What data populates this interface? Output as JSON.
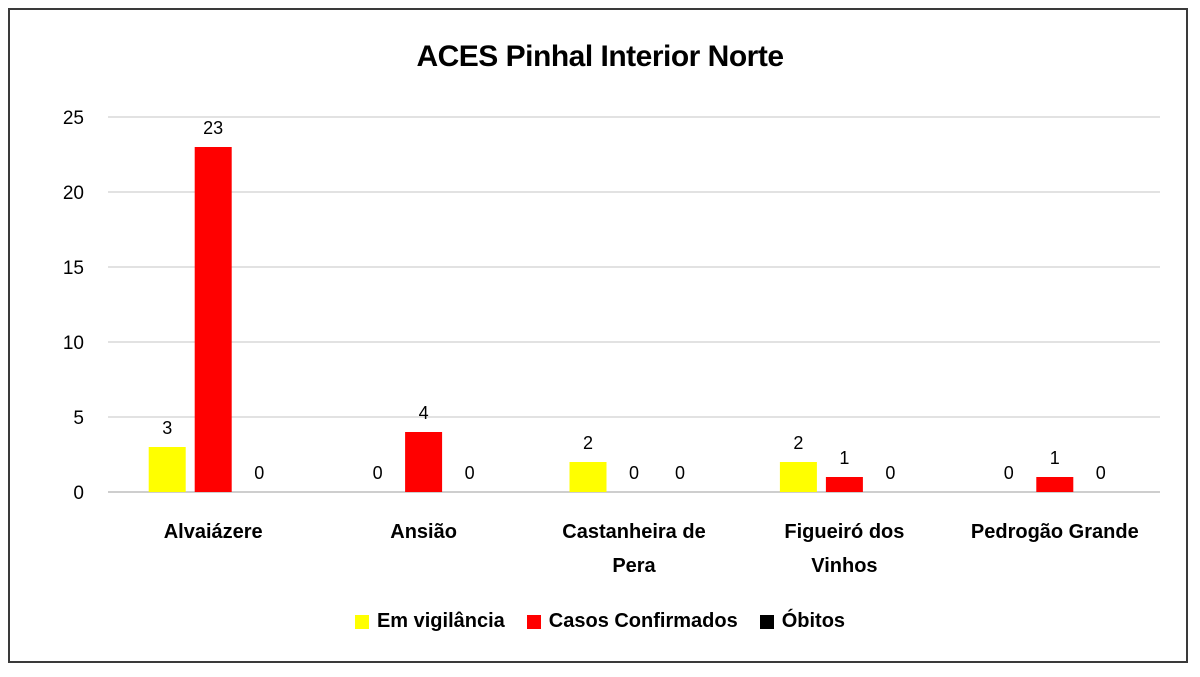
{
  "chart_data": {
    "type": "bar",
    "title": "ACES Pinhal Interior Norte",
    "categories": [
      "Alvaiázere",
      "Ansião",
      "Castanheira de Pera",
      "Figueiró dos Vinhos",
      "Pedrogão Grande"
    ],
    "category_lines": [
      [
        "Alvaiázere"
      ],
      [
        "Ansião"
      ],
      [
        "Castanheira de",
        "Pera"
      ],
      [
        "Figueiró dos",
        "Vinhos"
      ],
      [
        "Pedrogão Grande"
      ]
    ],
    "series": [
      {
        "name": "Em vigilância",
        "color": "#ffff00",
        "values": [
          3,
          0,
          2,
          2,
          0
        ]
      },
      {
        "name": "Casos Confirmados",
        "color": "#ff0000",
        "values": [
          23,
          4,
          0,
          1,
          1
        ]
      },
      {
        "name": "Óbitos",
        "color": "#000000",
        "values": [
          0,
          0,
          0,
          0,
          0
        ]
      }
    ],
    "ylim": [
      0,
      25
    ],
    "yticks": [
      0,
      5,
      10,
      15,
      20,
      25
    ],
    "grid": true,
    "legend_position": "bottom"
  }
}
